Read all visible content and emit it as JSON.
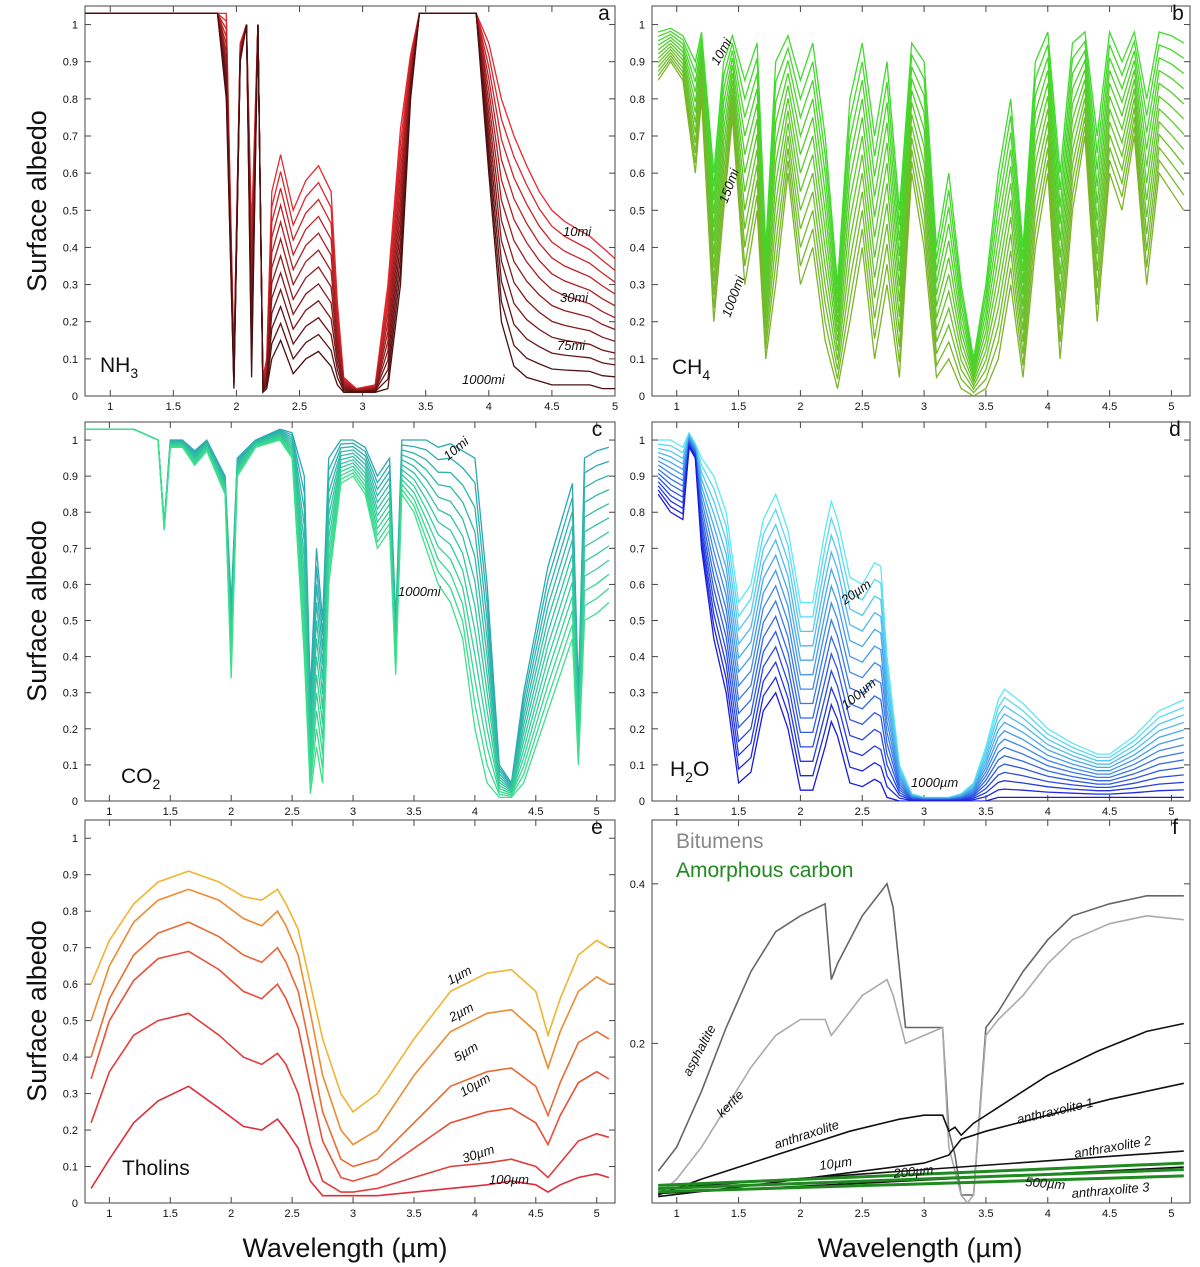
{
  "figure": {
    "y_axis_label": "Surface albedo",
    "x_axis_label": "Wavelength (µm)"
  },
  "chart_data": [
    {
      "type": "line",
      "panel": "a",
      "material": "NH",
      "material_sub": "3",
      "xlim": [
        0.8,
        5.0
      ],
      "ylim": [
        0,
        1.05
      ],
      "xticks": [
        1,
        1.5,
        2,
        2.5,
        3,
        3.5,
        4,
        4.5,
        5
      ],
      "yticks": [
        0,
        0.1,
        0.2,
        0.3,
        0.4,
        0.5,
        0.6,
        0.7,
        0.8,
        0.9,
        1
      ],
      "colors": {
        "thin": "#e8282d",
        "thick": "#4a1010"
      },
      "annotations": [
        "10mi",
        "30mi",
        "75mi",
        "1000mi"
      ],
      "series_count": 12,
      "x": [
        0.8,
        1.0,
        1.5,
        1.85,
        1.92,
        1.98,
        2.03,
        2.08,
        2.12,
        2.17,
        2.21,
        2.24,
        2.28,
        2.35,
        2.45,
        2.55,
        2.65,
        2.75,
        2.8,
        2.85,
        2.95,
        3.1,
        3.2,
        3.3,
        3.38,
        3.45,
        3.52,
        3.6,
        3.7,
        3.8,
        3.9,
        4.0,
        4.1,
        4.2,
        4.3,
        4.4,
        4.5,
        4.6,
        4.7,
        4.8,
        4.9,
        5.0
      ],
      "y_thin": [
        1.03,
        1.03,
        1.03,
        1.03,
        1.03,
        0.1,
        0.95,
        1.0,
        0.45,
        1.0,
        0.05,
        0.1,
        0.55,
        0.65,
        0.5,
        0.58,
        0.62,
        0.55,
        0.25,
        0.05,
        0.02,
        0.03,
        0.3,
        0.72,
        0.92,
        1.03,
        1.03,
        1.03,
        1.03,
        1.03,
        1.03,
        0.95,
        0.8,
        0.7,
        0.62,
        0.55,
        0.5,
        0.47,
        0.45,
        0.43,
        0.4,
        0.37
      ],
      "y_thick": [
        1.03,
        1.03,
        1.03,
        1.03,
        0.8,
        0.02,
        0.9,
        1.0,
        0.05,
        1.0,
        0.01,
        0.02,
        0.1,
        0.15,
        0.06,
        0.1,
        0.12,
        0.08,
        0.03,
        0.01,
        0.01,
        0.01,
        0.02,
        0.3,
        0.8,
        1.03,
        1.03,
        1.03,
        1.03,
        1.03,
        1.03,
        0.6,
        0.2,
        0.08,
        0.05,
        0.04,
        0.03,
        0.03,
        0.03,
        0.03,
        0.02,
        0.02
      ]
    },
    {
      "type": "line",
      "panel": "b",
      "material": "CH",
      "material_sub": "4",
      "xlim": [
        0.8,
        5.15
      ],
      "ylim": [
        0,
        1.05
      ],
      "xticks": [
        1,
        1.5,
        2,
        2.5,
        3,
        3.5,
        4,
        4.5,
        5
      ],
      "yticks": [
        0,
        0.1,
        0.2,
        0.3,
        0.4,
        0.5,
        0.6,
        0.7,
        0.8,
        0.9,
        1
      ],
      "colors": {
        "thin": "#3ddc2a",
        "thick": "#7db42a"
      },
      "annotations": [
        "10mi",
        "150mi",
        "1000mi"
      ],
      "series_count": 12,
      "x": [
        0.85,
        0.95,
        1.05,
        1.15,
        1.2,
        1.3,
        1.38,
        1.45,
        1.55,
        1.65,
        1.72,
        1.8,
        1.9,
        2.0,
        2.1,
        2.2,
        2.3,
        2.4,
        2.5,
        2.6,
        2.7,
        2.8,
        2.9,
        3.0,
        3.1,
        3.2,
        3.3,
        3.4,
        3.5,
        3.6,
        3.7,
        3.8,
        3.9,
        4.0,
        4.1,
        4.2,
        4.3,
        4.4,
        4.5,
        4.6,
        4.7,
        4.8,
        4.9,
        5.0,
        5.1
      ],
      "y_thin": [
        0.98,
        0.99,
        0.97,
        0.9,
        0.98,
        0.6,
        0.9,
        0.97,
        0.85,
        0.95,
        0.4,
        0.9,
        0.97,
        0.85,
        0.95,
        0.7,
        0.3,
        0.8,
        0.95,
        0.7,
        0.9,
        0.5,
        0.95,
        0.9,
        0.4,
        0.6,
        0.3,
        0.1,
        0.3,
        0.6,
        0.8,
        0.4,
        0.9,
        0.98,
        0.6,
        0.95,
        0.98,
        0.7,
        0.98,
        0.9,
        0.98,
        0.8,
        0.98,
        0.97,
        0.95
      ],
      "y_thick": [
        0.85,
        0.9,
        0.85,
        0.6,
        0.8,
        0.2,
        0.5,
        0.75,
        0.3,
        0.5,
        0.1,
        0.3,
        0.6,
        0.3,
        0.4,
        0.15,
        0.02,
        0.2,
        0.4,
        0.1,
        0.3,
        0.05,
        0.6,
        0.4,
        0.05,
        0.1,
        0.02,
        0.0,
        0.02,
        0.1,
        0.3,
        0.05,
        0.4,
        0.6,
        0.1,
        0.5,
        0.7,
        0.2,
        0.6,
        0.5,
        0.7,
        0.3,
        0.6,
        0.55,
        0.5
      ]
    },
    {
      "type": "line",
      "panel": "c",
      "material": "CO",
      "material_sub": "2",
      "xlim": [
        0.8,
        5.15
      ],
      "ylim": [
        0,
        1.05
      ],
      "xticks": [
        1,
        1.5,
        2,
        2.5,
        3,
        3.5,
        4,
        4.5,
        5
      ],
      "yticks": [
        0,
        0.1,
        0.2,
        0.3,
        0.4,
        0.5,
        0.6,
        0.7,
        0.8,
        0.9,
        1
      ],
      "colors": {
        "thin": "#2aa8b4",
        "thick": "#3ce08a"
      },
      "annotations": [
        "10mi",
        "1000mi"
      ],
      "series_count": 12,
      "x": [
        0.8,
        1.2,
        1.4,
        1.45,
        1.5,
        1.6,
        1.7,
        1.8,
        1.95,
        2.0,
        2.05,
        2.2,
        2.4,
        2.5,
        2.6,
        2.65,
        2.7,
        2.75,
        2.8,
        2.9,
        3.0,
        3.1,
        3.2,
        3.3,
        3.35,
        3.4,
        3.5,
        3.6,
        3.7,
        3.8,
        3.9,
        4.0,
        4.1,
        4.2,
        4.3,
        4.4,
        4.6,
        4.8,
        4.85,
        4.9,
        5.0,
        5.1
      ],
      "y_thin": [
        1.03,
        1.03,
        1.0,
        0.77,
        1.0,
        1.0,
        0.97,
        1.0,
        0.9,
        0.55,
        0.95,
        1.0,
        1.03,
        1.02,
        0.9,
        0.3,
        0.7,
        0.5,
        0.95,
        1.0,
        1.0,
        0.98,
        0.9,
        0.95,
        0.5,
        1.0,
        1.0,
        1.0,
        0.98,
        0.99,
        0.97,
        0.95,
        0.6,
        0.1,
        0.05,
        0.3,
        0.65,
        0.88,
        0.3,
        0.95,
        0.97,
        0.98
      ],
      "y_thick": [
        1.03,
        1.03,
        1.0,
        0.75,
        0.98,
        0.98,
        0.93,
        0.97,
        0.85,
        0.34,
        0.9,
        0.98,
        1.0,
        0.95,
        0.4,
        0.02,
        0.15,
        0.05,
        0.6,
        0.88,
        0.9,
        0.85,
        0.7,
        0.75,
        0.35,
        0.85,
        0.8,
        0.7,
        0.6,
        0.55,
        0.45,
        0.2,
        0.05,
        0.01,
        0.01,
        0.05,
        0.25,
        0.45,
        0.1,
        0.5,
        0.52,
        0.55
      ]
    },
    {
      "type": "line",
      "panel": "d",
      "material": "H",
      "material_sub": "2",
      "material_tail": "O",
      "xlim": [
        0.8,
        5.15
      ],
      "ylim": [
        0,
        1.05
      ],
      "xticks": [
        1,
        1.5,
        2,
        2.5,
        3,
        3.5,
        4,
        4.5,
        5
      ],
      "yticks": [
        0,
        0.1,
        0.2,
        0.3,
        0.4,
        0.5,
        0.6,
        0.7,
        0.8,
        0.9,
        1
      ],
      "colors": {
        "thin": "#5ee8f4",
        "thick": "#1a1adc"
      },
      "annotations": [
        "20µm",
        "100µm",
        "1000µm"
      ],
      "series_count": 14,
      "x": [
        0.85,
        0.95,
        1.05,
        1.1,
        1.15,
        1.2,
        1.3,
        1.4,
        1.5,
        1.6,
        1.7,
        1.8,
        1.9,
        2.0,
        2.1,
        2.2,
        2.25,
        2.3,
        2.4,
        2.5,
        2.6,
        2.65,
        2.7,
        2.8,
        2.9,
        3.0,
        3.1,
        3.2,
        3.3,
        3.4,
        3.5,
        3.6,
        3.65,
        3.8,
        4.0,
        4.2,
        4.4,
        4.5,
        4.7,
        4.9,
        5.1
      ],
      "y_thin": [
        1.0,
        1.0,
        0.98,
        1.02,
        0.99,
        0.95,
        0.9,
        0.8,
        0.55,
        0.6,
        0.78,
        0.85,
        0.75,
        0.55,
        0.55,
        0.75,
        0.83,
        0.78,
        0.62,
        0.6,
        0.66,
        0.65,
        0.4,
        0.1,
        0.02,
        0.01,
        0.01,
        0.01,
        0.02,
        0.05,
        0.15,
        0.28,
        0.31,
        0.27,
        0.2,
        0.16,
        0.13,
        0.13,
        0.18,
        0.25,
        0.28
      ],
      "y_thick": [
        0.85,
        0.8,
        0.78,
        0.98,
        0.95,
        0.7,
        0.45,
        0.3,
        0.05,
        0.08,
        0.25,
        0.3,
        0.2,
        0.03,
        0.03,
        0.15,
        0.22,
        0.18,
        0.05,
        0.04,
        0.06,
        0.05,
        0.01,
        0.0,
        0.0,
        0.0,
        0.0,
        0.0,
        0.0,
        0.0,
        0.0,
        0.01,
        0.01,
        0.01,
        0.01,
        0.01,
        0.01,
        0.01,
        0.01,
        0.01,
        0.01
      ]
    },
    {
      "type": "line",
      "panel": "e",
      "material": "Tholins",
      "xlim": [
        0.8,
        5.15
      ],
      "ylim": [
        0,
        1.05
      ],
      "xticks": [
        1,
        1.5,
        2,
        2.5,
        3,
        3.5,
        4,
        4.5,
        5
      ],
      "yticks": [
        0,
        0.1,
        0.2,
        0.3,
        0.4,
        0.5,
        0.6,
        0.7,
        0.8,
        0.9,
        1
      ],
      "x": [
        0.85,
        1.0,
        1.2,
        1.4,
        1.65,
        1.9,
        2.1,
        2.25,
        2.38,
        2.45,
        2.55,
        2.65,
        2.75,
        2.9,
        3.0,
        3.2,
        3.5,
        3.8,
        4.1,
        4.3,
        4.5,
        4.6,
        4.7,
        4.85,
        5.0,
        5.1
      ],
      "series": [
        {
          "name": "1µm",
          "color": "#f0b432",
          "values": [
            0.6,
            0.72,
            0.82,
            0.88,
            0.91,
            0.88,
            0.84,
            0.83,
            0.86,
            0.82,
            0.75,
            0.6,
            0.45,
            0.3,
            0.25,
            0.3,
            0.45,
            0.58,
            0.63,
            0.64,
            0.58,
            0.46,
            0.56,
            0.68,
            0.72,
            0.7
          ]
        },
        {
          "name": "2µm",
          "color": "#ee8a30",
          "values": [
            0.5,
            0.65,
            0.77,
            0.83,
            0.86,
            0.83,
            0.78,
            0.76,
            0.8,
            0.76,
            0.68,
            0.52,
            0.35,
            0.2,
            0.16,
            0.2,
            0.35,
            0.47,
            0.52,
            0.53,
            0.47,
            0.37,
            0.47,
            0.58,
            0.62,
            0.6
          ]
        },
        {
          "name": "5µm",
          "color": "#ea6a34",
          "values": [
            0.4,
            0.56,
            0.68,
            0.74,
            0.77,
            0.73,
            0.68,
            0.66,
            0.7,
            0.66,
            0.58,
            0.42,
            0.25,
            0.12,
            0.1,
            0.12,
            0.22,
            0.32,
            0.36,
            0.37,
            0.32,
            0.24,
            0.33,
            0.44,
            0.47,
            0.45
          ]
        },
        {
          "name": "10µm",
          "color": "#e65038",
          "values": [
            0.34,
            0.5,
            0.61,
            0.67,
            0.69,
            0.64,
            0.58,
            0.56,
            0.6,
            0.56,
            0.48,
            0.32,
            0.17,
            0.07,
            0.06,
            0.08,
            0.15,
            0.22,
            0.25,
            0.26,
            0.22,
            0.16,
            0.24,
            0.33,
            0.36,
            0.34
          ]
        },
        {
          "name": "30µm",
          "color": "#e23c3a",
          "values": [
            0.22,
            0.36,
            0.46,
            0.5,
            0.52,
            0.46,
            0.4,
            0.38,
            0.41,
            0.38,
            0.3,
            0.16,
            0.06,
            0.03,
            0.03,
            0.04,
            0.07,
            0.1,
            0.11,
            0.12,
            0.1,
            0.07,
            0.11,
            0.17,
            0.19,
            0.18
          ]
        },
        {
          "name": "100µm",
          "color": "#de2e3c",
          "values": [
            0.04,
            0.12,
            0.22,
            0.28,
            0.32,
            0.26,
            0.21,
            0.2,
            0.23,
            0.2,
            0.15,
            0.06,
            0.02,
            0.02,
            0.02,
            0.02,
            0.03,
            0.04,
            0.05,
            0.06,
            0.05,
            0.03,
            0.05,
            0.07,
            0.08,
            0.07
          ]
        }
      ],
      "annotations": [
        "1µm",
        "2µm",
        "5µm",
        "10µm",
        "30µm",
        "100µm"
      ]
    },
    {
      "type": "line",
      "panel": "f",
      "xlim": [
        0.8,
        5.15
      ],
      "ylim": [
        0,
        0.48
      ],
      "xticks": [
        1,
        1.5,
        2,
        2.5,
        3,
        3.5,
        4,
        4.5,
        5
      ],
      "yticks": [
        0.2,
        0.4
      ],
      "legend": [
        {
          "label": "Bitumens",
          "color": "#888888"
        },
        {
          "label": "Amorphous carbon",
          "color": "#1f8a1f"
        }
      ],
      "series": [
        {
          "name": "asphaltite",
          "color": "#666666",
          "x": [
            0.85,
            1.0,
            1.2,
            1.4,
            1.6,
            1.8,
            2.0,
            2.2,
            2.25,
            2.3,
            2.5,
            2.7,
            2.75,
            2.85,
            3.0,
            3.15,
            3.2,
            3.25,
            3.3,
            3.4,
            3.5,
            3.6,
            3.8,
            4.0,
            4.2,
            4.5,
            4.8,
            5.1
          ],
          "values": [
            0.04,
            0.07,
            0.14,
            0.22,
            0.29,
            0.34,
            0.36,
            0.375,
            0.28,
            0.3,
            0.36,
            0.4,
            0.37,
            0.22,
            0.22,
            0.22,
            0.09,
            0.06,
            0.01,
            0.01,
            0.22,
            0.24,
            0.29,
            0.33,
            0.36,
            0.375,
            0.385,
            0.385
          ]
        },
        {
          "name": "kerite",
          "color": "#aaaaaa",
          "x": [
            0.85,
            1.0,
            1.2,
            1.4,
            1.6,
            1.8,
            2.0,
            2.2,
            2.25,
            2.3,
            2.5,
            2.7,
            2.75,
            2.85,
            3.0,
            3.15,
            3.2,
            3.3,
            3.35,
            3.4,
            3.5,
            3.6,
            3.8,
            4.0,
            4.2,
            4.5,
            4.8,
            5.1
          ],
          "values": [
            0.01,
            0.03,
            0.07,
            0.12,
            0.17,
            0.21,
            0.23,
            0.23,
            0.21,
            0.22,
            0.26,
            0.28,
            0.26,
            0.2,
            0.21,
            0.22,
            0.07,
            0.01,
            0.0,
            0.01,
            0.21,
            0.23,
            0.26,
            0.3,
            0.33,
            0.35,
            0.36,
            0.355
          ]
        },
        {
          "name": "anthraxolite",
          "color": "#111111",
          "x": [
            0.85,
            1.2,
            1.6,
            2.0,
            2.4,
            2.8,
            3.0,
            3.15,
            3.2,
            3.25,
            3.3,
            3.4,
            3.6,
            4.0,
            4.4,
            4.8,
            5.1
          ],
          "values": [
            0.01,
            0.03,
            0.05,
            0.07,
            0.09,
            0.105,
            0.11,
            0.11,
            0.09,
            0.095,
            0.085,
            0.1,
            0.12,
            0.16,
            0.19,
            0.215,
            0.225
          ]
        },
        {
          "name": "anthraxolite 1",
          "color": "#111111",
          "x": [
            0.85,
            1.5,
            2.0,
            2.5,
            3.0,
            3.2,
            3.25,
            3.3,
            3.5,
            4.0,
            4.5,
            5.1
          ],
          "values": [
            0.008,
            0.02,
            0.03,
            0.04,
            0.05,
            0.06,
            0.07,
            0.08,
            0.09,
            0.11,
            0.13,
            0.15
          ]
        },
        {
          "name": "anthraxolite 2",
          "color": "#111111",
          "x": [
            0.85,
            5.1
          ],
          "values": [
            0.018,
            0.065
          ]
        },
        {
          "name": "anthraxolite 3",
          "color": "#111111",
          "x": [
            0.85,
            5.1
          ],
          "values": [
            0.012,
            0.045
          ]
        },
        {
          "name": "10µm",
          "color": "#1f8a1f",
          "x": [
            0.85,
            5.1
          ],
          "values": [
            0.022,
            0.05
          ]
        },
        {
          "name": "200µm",
          "color": "#1f8a1f",
          "x": [
            0.85,
            5.1
          ],
          "values": [
            0.018,
            0.042
          ]
        },
        {
          "name": "500µm",
          "color": "#1f8a1f",
          "x": [
            0.85,
            5.1
          ],
          "values": [
            0.014,
            0.034
          ]
        }
      ],
      "annotations": [
        "asphaltite",
        "kerite",
        "anthraxolite",
        "anthraxolite 1",
        "anthraxolite 2",
        "anthraxolite 3",
        "10µm",
        "200µm",
        "500µm"
      ]
    }
  ]
}
